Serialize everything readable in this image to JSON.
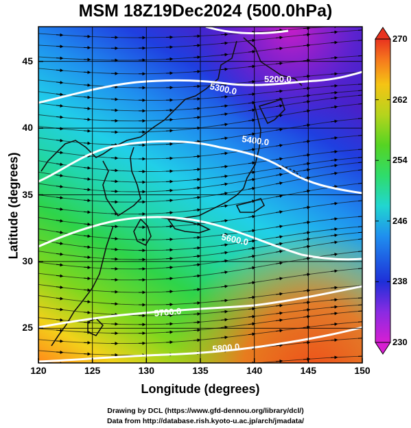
{
  "title": "MSM 18Z19Dec2024 (500.0hPa)",
  "x_axis": {
    "label": "Longitude (degrees)",
    "range": [
      120,
      150
    ],
    "ticks": [
      "120",
      "125",
      "130",
      "135",
      "140",
      "145",
      "150"
    ]
  },
  "y_axis": {
    "label": "Latitude  (degrees)",
    "range": [
      22.4,
      47.6
    ],
    "ticks": [
      "25",
      "30",
      "35",
      "40",
      "45"
    ]
  },
  "colorbar": {
    "range": [
      230,
      270
    ],
    "ticks": [
      "230",
      "238",
      "246",
      "254",
      "262",
      "270"
    ],
    "colors": [
      "#d71ed2",
      "#8a2be2",
      "#1e2fd8",
      "#1f8fef",
      "#21d6d0",
      "#2fdc6b",
      "#55d423",
      "#b5d41d",
      "#f5c414",
      "#f67a1d",
      "#e8331f"
    ]
  },
  "contours": [
    {
      "label": "5200.0"
    },
    {
      "label": "5300.0"
    },
    {
      "label": "5400.0"
    },
    {
      "label": "5600.0"
    },
    {
      "label": "5700.0"
    },
    {
      "label": "5800.0"
    }
  ],
  "footer": {
    "line1": "Drawing by DCL (https://www.gfd-dennou.org/library/dcl/)",
    "line2": "Data from http://database.rish.kyoto-u.ac.jp/arch/jmadata/"
  }
}
